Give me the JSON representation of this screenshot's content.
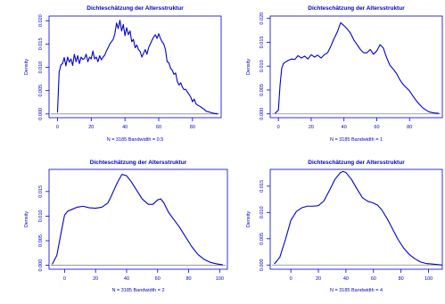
{
  "chart_data": [
    {
      "type": "line",
      "title": "Dichteschätzung der Altersstruktur",
      "xlabel": "N = 3185   Bandwidth = 0.5",
      "ylabel": "Density",
      "xlim": [
        -5,
        97
      ],
      "ylim": [
        -0.0008,
        0.021
      ],
      "xticks": [
        0,
        20,
        40,
        60,
        80
      ],
      "yticks": [
        0.0,
        0.005,
        0.01,
        0.015,
        0.02
      ],
      "ytick_labels": [
        "0.000",
        "0.005",
        "0.010",
        "0.015",
        "0.020"
      ],
      "series": [
        {
          "x": [
            0,
            1,
            2,
            3,
            4,
            5,
            6,
            7,
            8,
            9,
            10,
            11,
            12,
            13,
            14,
            15,
            16,
            17,
            18,
            19,
            20,
            21,
            22,
            23,
            24,
            25,
            26,
            27,
            28,
            29,
            30,
            31,
            32,
            33,
            34,
            35,
            36,
            37,
            38,
            39,
            40,
            41,
            42,
            43,
            44,
            45,
            46,
            47,
            48,
            49,
            50,
            51,
            52,
            53,
            54,
            55,
            56,
            57,
            58,
            59,
            60,
            61,
            62,
            63,
            64,
            65,
            66,
            67,
            68,
            69,
            70,
            71,
            72,
            73,
            74,
            75,
            76,
            77,
            78,
            79,
            80,
            81,
            82,
            83,
            84,
            85,
            86,
            87,
            88,
            89,
            90,
            91,
            92,
            93,
            94,
            95
          ],
          "y": [
            0.0003,
            0.009,
            0.0105,
            0.0108,
            0.0121,
            0.0103,
            0.0122,
            0.0111,
            0.0118,
            0.0104,
            0.0128,
            0.0112,
            0.0125,
            0.0108,
            0.0122,
            0.0117,
            0.0119,
            0.0128,
            0.0112,
            0.0122,
            0.0118,
            0.0135,
            0.0118,
            0.0122,
            0.0112,
            0.0125,
            0.0116,
            0.0122,
            0.0126,
            0.0135,
            0.0142,
            0.015,
            0.0155,
            0.016,
            0.0172,
            0.0195,
            0.0183,
            0.0201,
            0.0178,
            0.0192,
            0.0168,
            0.0185,
            0.017,
            0.0178,
            0.0155,
            0.016,
            0.0142,
            0.0148,
            0.0138,
            0.0134,
            0.0122,
            0.013,
            0.0138,
            0.0128,
            0.0142,
            0.015,
            0.0158,
            0.0165,
            0.017,
            0.0162,
            0.0172,
            0.0162,
            0.0155,
            0.015,
            0.0138,
            0.0112,
            0.011,
            0.0098,
            0.0094,
            0.0085,
            0.0088,
            0.007,
            0.0062,
            0.0067,
            0.0058,
            0.0052,
            0.0053,
            0.0047,
            0.0042,
            0.0036,
            0.0026,
            0.0032,
            0.0022,
            0.0019,
            0.0017,
            0.0015,
            0.0012,
            0.001,
            0.0006,
            0.0005,
            0.0004,
            0.0003,
            0.0002,
            0.0001,
            0.0001,
            0.0
          ]
        }
      ]
    },
    {
      "type": "line",
      "title": "Dichteschätzung der Altersstruktur",
      "xlabel": "N = 3185   Bandwidth = 1",
      "ylabel": "Density",
      "xlim": [
        -5,
        100
      ],
      "ylim": [
        -0.0008,
        0.0205
      ],
      "xticks": [
        0,
        20,
        40,
        60,
        80
      ],
      "yticks": [
        0.0,
        0.005,
        0.01,
        0.015,
        0.02
      ],
      "ytick_labels": [
        "0.000",
        "0.005",
        "0.010",
        "0.015",
        "0.020"
      ],
      "series": [
        {
          "x": [
            -2,
            0,
            1,
            2,
            3,
            4,
            6,
            8,
            10,
            12,
            14,
            16,
            18,
            20,
            22,
            24,
            26,
            28,
            30,
            32,
            34,
            36,
            37,
            38,
            40,
            42,
            44,
            46,
            48,
            50,
            52,
            54,
            56,
            58,
            60,
            62,
            64,
            66,
            68,
            70,
            72,
            74,
            76,
            78,
            80,
            82,
            84,
            86,
            88,
            90,
            92,
            95,
            98
          ],
          "y": [
            0.0001,
            0.0008,
            0.006,
            0.0095,
            0.0105,
            0.0108,
            0.0112,
            0.0115,
            0.0114,
            0.0122,
            0.0117,
            0.0121,
            0.0115,
            0.0124,
            0.0119,
            0.0123,
            0.0117,
            0.0124,
            0.0128,
            0.0142,
            0.0158,
            0.0172,
            0.0182,
            0.0191,
            0.0185,
            0.0178,
            0.0169,
            0.0155,
            0.0145,
            0.0135,
            0.0128,
            0.0128,
            0.0135,
            0.0125,
            0.0132,
            0.0145,
            0.0138,
            0.0118,
            0.0102,
            0.0094,
            0.0085,
            0.0072,
            0.0062,
            0.0055,
            0.0048,
            0.0038,
            0.0028,
            0.002,
            0.0013,
            0.0008,
            0.0004,
            0.0002,
            0.0001
          ]
        }
      ]
    },
    {
      "type": "line",
      "title": "Dichteschätzung der Altersstruktur",
      "xlabel": "N = 3185   Bandwidth = 2",
      "ylabel": "Density",
      "xlim": [
        -10,
        105
      ],
      "ylim": [
        -0.0008,
        0.0195
      ],
      "xticks": [
        0,
        20,
        40,
        60,
        80,
        100
      ],
      "yticks": [
        0.0,
        0.005,
        0.01,
        0.015
      ],
      "ytick_labels": [
        "0.000",
        "0.005",
        "0.010",
        "0.015"
      ],
      "series": [
        {
          "x": [
            -8,
            -5,
            -2,
            0,
            2,
            5,
            8,
            12,
            16,
            20,
            24,
            28,
            30,
            34,
            37,
            40,
            43,
            46,
            50,
            54,
            57,
            60,
            62,
            64,
            67,
            70,
            74,
            78,
            82,
            86,
            90,
            94,
            98,
            102
          ],
          "y": [
            0.0002,
            0.002,
            0.007,
            0.0102,
            0.011,
            0.0114,
            0.0118,
            0.012,
            0.0117,
            0.0116,
            0.0118,
            0.0127,
            0.014,
            0.0168,
            0.0185,
            0.0182,
            0.017,
            0.0155,
            0.0135,
            0.0124,
            0.0124,
            0.0133,
            0.0135,
            0.0127,
            0.0108,
            0.0095,
            0.0078,
            0.0058,
            0.0038,
            0.0022,
            0.0012,
            0.0006,
            0.0003,
            0.0001
          ]
        }
      ]
    },
    {
      "type": "line",
      "title": "Dichteschätzung der Altersstruktur",
      "xlabel": "N = 3185   Bandwidth = 4",
      "ylabel": "Density",
      "xlim": [
        -15,
        110
      ],
      "ylim": [
        -0.0008,
        0.0182
      ],
      "xticks": [
        0,
        20,
        40,
        60,
        80,
        100
      ],
      "yticks": [
        0.0,
        0.005,
        0.01,
        0.015
      ],
      "ytick_labels": [
        "0.000",
        "0.005",
        "0.010",
        "0.015"
      ],
      "series": [
        {
          "x": [
            -12,
            -8,
            -4,
            0,
            4,
            8,
            12,
            16,
            20,
            24,
            28,
            32,
            36,
            38,
            40,
            44,
            48,
            52,
            56,
            60,
            63,
            66,
            70,
            74,
            78,
            82,
            86,
            90,
            94,
            98,
            102,
            106,
            110
          ],
          "y": [
            0.0002,
            0.0015,
            0.0048,
            0.0085,
            0.0102,
            0.0109,
            0.0112,
            0.0112,
            0.0113,
            0.0122,
            0.0142,
            0.0163,
            0.0176,
            0.0178,
            0.0176,
            0.0163,
            0.0145,
            0.0128,
            0.0121,
            0.0118,
            0.0114,
            0.0105,
            0.0088,
            0.0068,
            0.0048,
            0.0032,
            0.002,
            0.0012,
            0.0006,
            0.0003,
            0.0002,
            0.0001,
            0.0
          ]
        }
      ]
    }
  ]
}
